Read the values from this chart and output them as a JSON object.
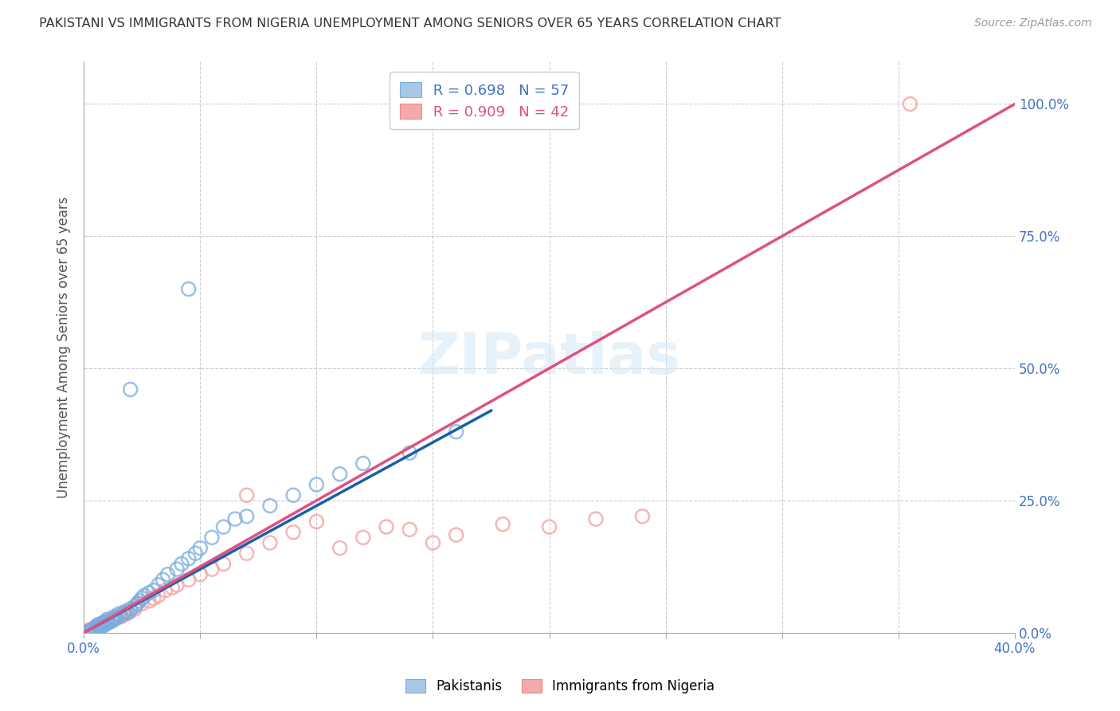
{
  "title": "PAKISTANI VS IMMIGRANTS FROM NIGERIA UNEMPLOYMENT AMONG SENIORS OVER 65 YEARS CORRELATION CHART",
  "source": "Source: ZipAtlas.com",
  "ylabel": "Unemployment Among Seniors over 65 years",
  "xmin": 0.0,
  "xmax": 0.4,
  "ymin": 0.0,
  "ymax": 1.08,
  "ytick_vals": [
    0.0,
    0.25,
    0.5,
    0.75,
    1.0
  ],
  "xtick_vals": [
    0.0,
    0.05,
    0.1,
    0.15,
    0.2,
    0.25,
    0.3,
    0.35,
    0.4
  ],
  "watermark": "ZIPatlas",
  "legend_label1": "Pakistanis",
  "legend_label2": "Immigrants from Nigeria",
  "color_pakistani": "#a8c8e8",
  "color_pakistan_edge": "#7aace0",
  "color_nigeria": "#f4aaaa",
  "color_nigeria_edge": "#ee8888",
  "color_pakistani_line": "#1a5fa8",
  "color_nigeria_line": "#e05080",
  "color_diagonal": "#c0c0c0",
  "color_grid": "#cccccc",
  "color_tick_label": "#4472C4",
  "pak_scatter_x": [
    0.001,
    0.002,
    0.003,
    0.003,
    0.004,
    0.004,
    0.005,
    0.005,
    0.006,
    0.006,
    0.007,
    0.007,
    0.008,
    0.008,
    0.009,
    0.009,
    0.01,
    0.01,
    0.011,
    0.012,
    0.013,
    0.013,
    0.014,
    0.015,
    0.016,
    0.017,
    0.018,
    0.019,
    0.02,
    0.022,
    0.023,
    0.024,
    0.025,
    0.026,
    0.028,
    0.03,
    0.032,
    0.034,
    0.036,
    0.04,
    0.042,
    0.045,
    0.048,
    0.05,
    0.055,
    0.06,
    0.065,
    0.07,
    0.08,
    0.09,
    0.1,
    0.11,
    0.12,
    0.14,
    0.16,
    0.045,
    0.02
  ],
  "pak_scatter_y": [
    0.001,
    0.002,
    0.003,
    0.004,
    0.005,
    0.006,
    0.007,
    0.01,
    0.015,
    0.012,
    0.01,
    0.015,
    0.012,
    0.018,
    0.015,
    0.02,
    0.018,
    0.025,
    0.02,
    0.022,
    0.025,
    0.03,
    0.028,
    0.035,
    0.032,
    0.038,
    0.04,
    0.038,
    0.045,
    0.05,
    0.055,
    0.06,
    0.065,
    0.07,
    0.075,
    0.08,
    0.09,
    0.1,
    0.11,
    0.12,
    0.13,
    0.14,
    0.15,
    0.16,
    0.18,
    0.2,
    0.215,
    0.22,
    0.24,
    0.26,
    0.28,
    0.3,
    0.32,
    0.34,
    0.38,
    0.65,
    0.46
  ],
  "nig_scatter_x": [
    0.001,
    0.002,
    0.003,
    0.004,
    0.005,
    0.006,
    0.007,
    0.008,
    0.01,
    0.012,
    0.014,
    0.016,
    0.018,
    0.02,
    0.022,
    0.025,
    0.028,
    0.03,
    0.032,
    0.035,
    0.038,
    0.04,
    0.045,
    0.05,
    0.055,
    0.06,
    0.07,
    0.08,
    0.09,
    0.1,
    0.11,
    0.12,
    0.13,
    0.14,
    0.15,
    0.16,
    0.18,
    0.2,
    0.22,
    0.24,
    0.355,
    0.07
  ],
  "nig_scatter_y": [
    0.002,
    0.004,
    0.006,
    0.008,
    0.01,
    0.012,
    0.015,
    0.018,
    0.022,
    0.025,
    0.028,
    0.03,
    0.035,
    0.04,
    0.045,
    0.055,
    0.06,
    0.065,
    0.07,
    0.08,
    0.085,
    0.09,
    0.1,
    0.11,
    0.12,
    0.13,
    0.15,
    0.17,
    0.19,
    0.21,
    0.16,
    0.18,
    0.2,
    0.195,
    0.17,
    0.185,
    0.205,
    0.2,
    0.215,
    0.22,
    1.0,
    0.26
  ],
  "pak_line_x": [
    0.0,
    0.175
  ],
  "pak_line_y": [
    0.0,
    0.42
  ],
  "nig_line_x": [
    0.0,
    0.4
  ],
  "nig_line_y": [
    0.0,
    1.0
  ]
}
